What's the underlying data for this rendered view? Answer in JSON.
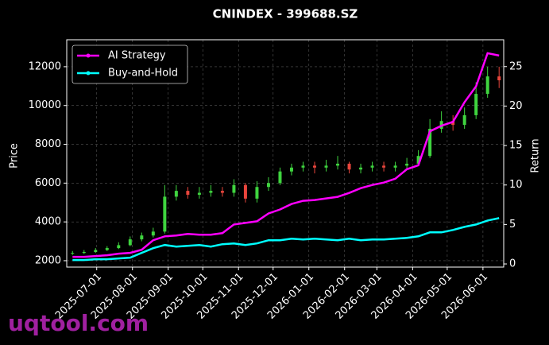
{
  "chart_data": {
    "type": "candlestick",
    "title": "CNINDEX - 399688.SZ",
    "watermark": "uqtool.com",
    "ylabel": "Price",
    "y2label": "Return",
    "x": [
      "2025-06-10",
      "2025-06-20",
      "2025-06-30",
      "2025-07-10",
      "2025-07-20",
      "2025-07-30",
      "2025-08-09",
      "2025-08-19",
      "2025-08-29",
      "2025-09-08",
      "2025-09-18",
      "2025-09-28",
      "2025-10-08",
      "2025-10-18",
      "2025-10-28",
      "2025-11-07",
      "2025-11-17",
      "2025-11-27",
      "2025-12-07",
      "2025-12-17",
      "2025-12-27",
      "2026-01-06",
      "2026-01-16",
      "2026-01-26",
      "2026-02-05",
      "2026-02-15",
      "2026-02-25",
      "2026-03-07",
      "2026-03-17",
      "2026-03-27",
      "2026-04-06",
      "2026-04-16",
      "2026-04-26",
      "2026-05-06",
      "2026-05-16",
      "2026-05-26",
      "2026-06-05",
      "2026-06-15"
    ],
    "open": [
      2380,
      2400,
      2450,
      2550,
      2650,
      2800,
      3100,
      3300,
      3500,
      5300,
      5600,
      5400,
      5500,
      5600,
      5500,
      5900,
      5200,
      5800,
      6000,
      6600,
      6800,
      6900,
      6800,
      6900,
      7000,
      6700,
      6800,
      6900,
      6800,
      6900,
      7000,
      7400,
      8800,
      9200,
      9000,
      9500,
      10600,
      11500
    ],
    "high": [
      2500,
      2550,
      2650,
      2750,
      2950,
      3250,
      3450,
      3700,
      5900,
      5900,
      5800,
      5800,
      5900,
      5800,
      6200,
      6000,
      6100,
      6300,
      6800,
      7000,
      7100,
      7100,
      7200,
      7400,
      7100,
      7000,
      7100,
      7100,
      7100,
      7300,
      7700,
      9300,
      9700,
      9500,
      9900,
      11200,
      12000,
      12000
    ],
    "low": [
      2300,
      2350,
      2400,
      2500,
      2600,
      2750,
      3000,
      3200,
      3400,
      5100,
      5200,
      5200,
      5300,
      5300,
      5300,
      5000,
      5000,
      5600,
      5900,
      6400,
      6600,
      6500,
      6600,
      6700,
      6500,
      6500,
      6600,
      6600,
      6600,
      6700,
      6900,
      7300,
      8600,
      8700,
      8800,
      9300,
      10400,
      10900
    ],
    "close": [
      2400,
      2450,
      2550,
      2650,
      2800,
      3100,
      3300,
      3500,
      5300,
      5600,
      5400,
      5500,
      5600,
      5500,
      5900,
      5200,
      5800,
      6000,
      6600,
      6800,
      6900,
      6800,
      6900,
      7000,
      6700,
      6800,
      6900,
      6800,
      6900,
      7000,
      7400,
      8800,
      9200,
      9000,
      9500,
      10600,
      11500,
      11300
    ],
    "up_color": "#3fd43f",
    "down_color": "#e8453c",
    "series": [
      {
        "name": "AI Strategy",
        "color": "#ff00ff",
        "axis": "y2",
        "values": [
          0.9,
          0.9,
          1.0,
          1.1,
          1.3,
          1.4,
          1.8,
          3.0,
          3.5,
          3.6,
          3.8,
          3.7,
          3.7,
          3.9,
          5.0,
          5.2,
          5.4,
          6.4,
          6.9,
          7.6,
          8.0,
          8.1,
          8.3,
          8.5,
          9.0,
          9.6,
          10.0,
          10.3,
          10.8,
          12.0,
          12.5,
          16.8,
          17.5,
          18.0,
          20.5,
          22.5,
          26.7,
          26.4
        ]
      },
      {
        "name": "Buy-and-Hold",
        "color": "#00ffff",
        "axis": "y2",
        "values": [
          0.5,
          0.5,
          0.6,
          0.6,
          0.7,
          0.8,
          1.4,
          2.0,
          2.4,
          2.2,
          2.3,
          2.4,
          2.2,
          2.5,
          2.6,
          2.4,
          2.6,
          3.0,
          3.0,
          3.2,
          3.1,
          3.2,
          3.1,
          3.0,
          3.2,
          3.0,
          3.1,
          3.1,
          3.2,
          3.3,
          3.5,
          4.0,
          4.0,
          4.3,
          4.7,
          5.0,
          5.5,
          5.8
        ]
      }
    ],
    "xlim": [
      "2025-06-05",
      "2026-06-19"
    ],
    "xticks": [
      "2025-07-01",
      "2025-08-01",
      "2025-09-01",
      "2025-10-01",
      "2025-11-01",
      "2025-12-01",
      "2026-01-01",
      "2026-02-01",
      "2026-03-01",
      "2026-04-01",
      "2026-05-01",
      "2026-06-01"
    ],
    "ylim": [
      1670,
      13390
    ],
    "yticks": [
      2000,
      4000,
      6000,
      8000,
      10000,
      12000
    ],
    "y2lim": [
      -0.4,
      28.4
    ],
    "y2ticks": [
      0,
      5,
      10,
      15,
      20,
      25
    ],
    "grid": true,
    "legend": "upper left"
  }
}
